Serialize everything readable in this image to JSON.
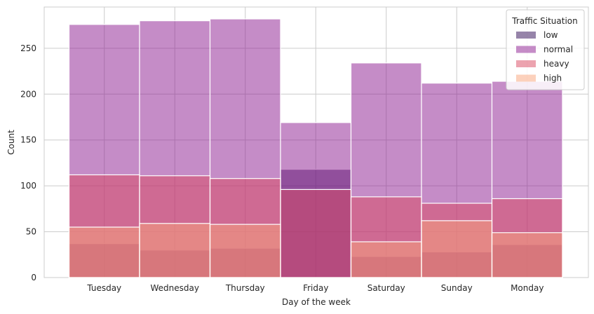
{
  "chart_data": {
    "type": "bar",
    "subtype": "overlapping-histogram",
    "categories": [
      "Tuesday",
      "Wednesday",
      "Thursday",
      "Friday",
      "Saturday",
      "Sunday",
      "Monday"
    ],
    "series": [
      {
        "name": "low",
        "color": "#2e0a54",
        "values": [
          37,
          30,
          32,
          118,
          23,
          28,
          36
        ]
      },
      {
        "name": "normal",
        "color": "#8b1a8f",
        "values": [
          276,
          280,
          282,
          169,
          234,
          212,
          214
        ]
      },
      {
        "name": "heavy",
        "color": "#d9475f",
        "values": [
          112,
          111,
          108,
          96,
          88,
          81,
          86
        ]
      },
      {
        "name": "high",
        "color": "#f9a37a",
        "values": [
          55,
          59,
          58,
          0,
          39,
          62,
          49
        ]
      }
    ],
    "xlabel": "Day of the week",
    "ylabel": "Count",
    "ylim": [
      0,
      295
    ],
    "yticks": [
      0,
      50,
      100,
      150,
      200,
      250
    ],
    "grid": true,
    "legend": {
      "title": "Traffic Situation",
      "placement": "top-right"
    },
    "alpha": 0.5
  }
}
